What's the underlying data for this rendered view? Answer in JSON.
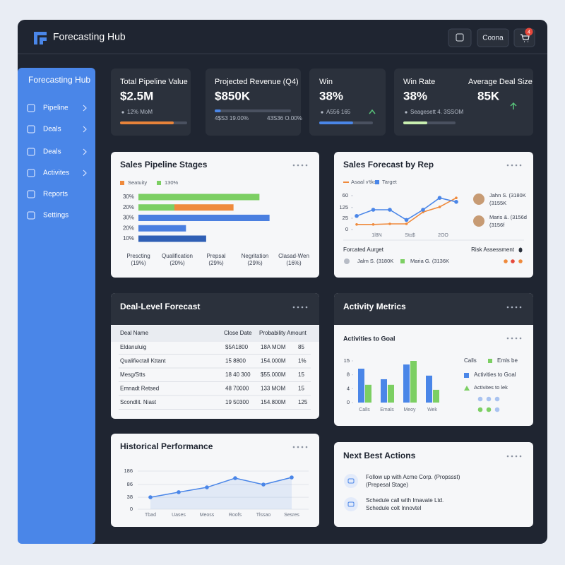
{
  "header": {
    "title": "Forecasting Hub",
    "button": "Coona",
    "badge": "4"
  },
  "sidebar": {
    "title": "Forecasting Hub",
    "items": [
      "Pipeline",
      "Deals",
      "Deals",
      "Activites",
      "Reports",
      "Settings"
    ]
  },
  "kpis": [
    {
      "label": "Total Pipeline Value",
      "value": "$2.5M",
      "note": "12% MoM",
      "progress": 80,
      "color": "#e8833a"
    },
    {
      "label": "Projected Revenue (Q4)",
      "value": "$850K",
      "notes": [
        "4$S3 19.00%",
        "43S36 O.00%"
      ],
      "progress": 8,
      "color": "#4a86e8"
    },
    {
      "label": "Win",
      "value": "38%",
      "note": "A556 165",
      "progress": 63,
      "color": "#4a86e8"
    },
    {
      "label": "Win Rate",
      "value": "38%",
      "note": "Seagesett  4. 3SSOM",
      "progress": 46,
      "color": "#c9efb0"
    },
    {
      "label": "Average Deal Size",
      "value": "85K"
    }
  ],
  "chart_data": [
    {
      "type": "hbar",
      "title": "Sales Pipeline Stages",
      "categories": [
        "30%",
        "20%",
        "30%",
        "20%",
        "10%"
      ],
      "series": [
        {
          "name": "130%",
          "color": "#7ccf63",
          "values": [
            84,
            25,
            null,
            null,
            null
          ]
        },
        {
          "name": "Seatuity",
          "color": "#ef8a3c",
          "values": [
            null,
            41,
            null,
            null,
            null
          ]
        },
        {
          "color": "#4a7fe0",
          "values": [
            null,
            null,
            91,
            33,
            null
          ]
        },
        {
          "color": "#2f5fb5",
          "values": [
            null,
            null,
            null,
            null,
            47
          ]
        }
      ],
      "xlim": [
        0,
        100
      ],
      "stage_labels": [
        [
          "Prescting",
          "(19%)"
        ],
        [
          "Qualification",
          "(20%)"
        ],
        [
          "Prepsal",
          "(29%)"
        ],
        [
          "Negritation",
          "(29%)"
        ],
        [
          "Clasad-Wen",
          "(16%)"
        ]
      ]
    },
    {
      "type": "line",
      "title": "Sales Forecast by Rep",
      "categories": [
        null,
        "1l8N",
        null,
        "Sto$",
        null,
        "2OO",
        null
      ],
      "series": [
        {
          "name": "Asaal v'tko",
          "color": "#ef8a3c",
          "values": [
            9,
            9,
            10,
            10,
            31,
            40,
            56
          ]
        },
        {
          "name": "Target",
          "color": "#4a86e8",
          "values": [
            24,
            35,
            35,
            17,
            35,
            56,
            49
          ]
        }
      ],
      "ylim": [
        0,
        60
      ],
      "yticks": [
        0,
        {
          "value": 20,
          "label": "25"
        },
        {
          "value": 39,
          "label": "125"
        },
        {
          "value": 60,
          "label": "60"
        }
      ],
      "reps": [
        [
          "Jahn S. (3180K",
          "(3155K"
        ],
        [
          "Maris &. (3156d",
          "(3156f"
        ]
      ],
      "footer_left": "Forcated Aurget",
      "footer_right": "Risk Assessment",
      "footer_items": [
        "Jalm S. (3180K",
        "Maria G. (3136K"
      ]
    },
    {
      "type": "bar",
      "title": "Activity Metrics",
      "subtitle": "Activities to Goal",
      "categories": [
        "Calls",
        "Emals",
        "Meoy",
        "Wek"
      ],
      "series": [
        {
          "name": "Activities to Goal",
          "color": "#4a86e8",
          "values": [
            12.2,
            8.4,
            13.7,
            9.7
          ]
        },
        {
          "name": "Activites to lek",
          "color": "#7ccf63",
          "values": [
            6.4,
            6.4,
            15,
            4.6
          ]
        }
      ],
      "ylim": [
        0,
        15
      ],
      "yticks": [
        0,
        {
          "value": 5,
          "label": "4"
        },
        {
          "value": 10,
          "label": "8"
        },
        15
      ],
      "legend_extra": [
        "Calls",
        "Emls be"
      ]
    },
    {
      "type": "area",
      "title": "Historical Performance",
      "categories": [
        "Tbad",
        "Uases",
        "Meoss",
        "Roofs",
        "Tlssao",
        "Sesres"
      ],
      "series": [
        {
          "color": "#4a86e8",
          "values": [
            47,
            67,
            86,
            122,
            97,
            125
          ]
        }
      ],
      "ylim": [
        0,
        150
      ],
      "yticks": [
        0,
        {
          "value": 47,
          "label": "38"
        },
        {
          "value": 97,
          "label": "86"
        },
        {
          "value": 150,
          "label": "186"
        }
      ]
    }
  ],
  "table": {
    "title": "Deal-Level Forecast",
    "columns": [
      "Deal Name",
      "Close Date",
      "Probability Amount"
    ],
    "rows": [
      [
        "Eldanuluig",
        "$5A1800",
        "18A MOM",
        "85"
      ],
      [
        "Qualifiectall Kttant",
        "15 8800",
        "154.000M",
        "1%"
      ],
      [
        "Mesg/Stts",
        "18 40 300",
        "$55.000M",
        "15"
      ],
      [
        "Emnadt Retsed",
        "48 70000",
        "133 MOM",
        "15"
      ],
      [
        "Scondlit. Niast",
        "19 50300",
        "154.800M",
        "125"
      ]
    ]
  },
  "next_actions": {
    "title": "Next Best Actions",
    "items": [
      [
        "Follow up with Acme Corp. (Propssst)",
        "(Prepesal Stage)"
      ],
      [
        "Schedule call with Imavate Ltd.",
        "Schedule colt Innovtel"
      ]
    ]
  }
}
